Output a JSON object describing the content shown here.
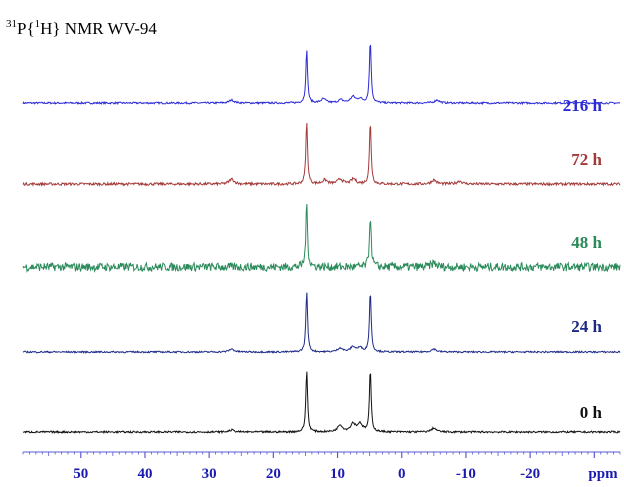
{
  "chart_data": {
    "type": "line",
    "title_sup": "31",
    "title_pre": "P{",
    "title_sup2": "1",
    "title_post": "H} NMR WV-94",
    "xlabel": "ppm",
    "xlim": [
      59,
      -34
    ],
    "x_reversed": true,
    "xticks": [
      {
        "value": 50,
        "label": "50"
      },
      {
        "value": 40,
        "label": "40"
      },
      {
        "value": 30,
        "label": "30"
      },
      {
        "value": 20,
        "label": "20"
      },
      {
        "value": 10,
        "label": "10"
      },
      {
        "value": 0,
        "label": "0"
      },
      {
        "value": -10,
        "label": "-10"
      },
      {
        "value": -20,
        "label": "-20"
      }
    ],
    "grid": false,
    "series": [
      {
        "name": "216 h",
        "color": "#2a2ad6",
        "noise": 0.9,
        "peaks": [
          {
            "ppm": 14.8,
            "height": 53
          },
          {
            "ppm": 4.9,
            "height": 63
          },
          {
            "ppm": 26.5,
            "height": 3
          },
          {
            "ppm": 12.2,
            "height": 4
          },
          {
            "ppm": 9.5,
            "height": 3
          },
          {
            "ppm": 7.6,
            "height": 6
          },
          {
            "ppm": 6.5,
            "height": 4
          },
          {
            "ppm": -5.5,
            "height": 3
          }
        ]
      },
      {
        "name": "72 h",
        "color": "#a33a3a",
        "noise": 1.3,
        "peaks": [
          {
            "ppm": 14.8,
            "height": 62
          },
          {
            "ppm": 4.9,
            "height": 62
          },
          {
            "ppm": 26.5,
            "height": 5
          },
          {
            "ppm": 12.0,
            "height": 4
          },
          {
            "ppm": 9.6,
            "height": 5
          },
          {
            "ppm": 7.5,
            "height": 5
          },
          {
            "ppm": -5.0,
            "height": 4
          },
          {
            "ppm": -9.0,
            "height": 3
          }
        ]
      },
      {
        "name": "48 h",
        "color": "#2a8a5a",
        "noise": 4.2,
        "peaks": [
          {
            "ppm": 14.8,
            "height": 63
          },
          {
            "ppm": 4.9,
            "height": 53
          },
          {
            "ppm": -5.0,
            "height": 4
          }
        ]
      },
      {
        "name": "24 h",
        "color": "#1c2a86",
        "noise": 0.8,
        "peaks": [
          {
            "ppm": 14.8,
            "height": 61
          },
          {
            "ppm": 4.9,
            "height": 61
          },
          {
            "ppm": 26.5,
            "height": 3
          },
          {
            "ppm": 9.6,
            "height": 4
          },
          {
            "ppm": 7.6,
            "height": 5
          },
          {
            "ppm": 6.5,
            "height": 4
          },
          {
            "ppm": -5.0,
            "height": 3
          }
        ]
      },
      {
        "name": "0 h",
        "color": "#111111",
        "noise": 0.9,
        "peaks": [
          {
            "ppm": 14.8,
            "height": 62
          },
          {
            "ppm": 4.9,
            "height": 62
          },
          {
            "ppm": 26.5,
            "height": 2
          },
          {
            "ppm": 9.6,
            "height": 7
          },
          {
            "ppm": 7.6,
            "height": 8
          },
          {
            "ppm": 6.5,
            "height": 8
          },
          {
            "ppm": -5.0,
            "height": 4
          }
        ]
      }
    ]
  }
}
